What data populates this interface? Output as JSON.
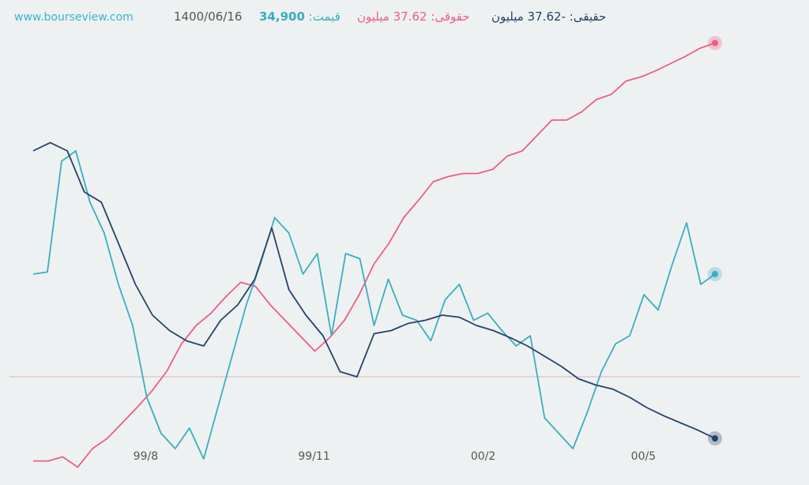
{
  "header": {
    "site": "www.bourseview.com",
    "date": "1400/06/16",
    "price_label": "قیمت: ",
    "price_value": "34,900",
    "hoqoqi_label": "حقوقی: 37.62 میلیون",
    "haqiqi_label": "حقیقی: -37.62 میلیون"
  },
  "colors": {
    "price": "#3aaec0",
    "hoqoqi": "#ee5d86",
    "haqiqi": "#24436a",
    "zero_line": "#d8b8b8",
    "background": "#eef1f1"
  },
  "chart_data": {
    "type": "line",
    "title": "",
    "xlabel": "",
    "ylabel": "",
    "x_ticks": [
      {
        "label": "99/8",
        "t": 0.165
      },
      {
        "label": "99/11",
        "t": 0.412
      },
      {
        "label": "00/2",
        "t": 0.66
      },
      {
        "label": "00/5",
        "t": 0.895
      }
    ],
    "series": [
      {
        "name": "حقوقی",
        "key": "hoqoqi",
        "values": [
          -0.82,
          -0.82,
          -0.78,
          -0.88,
          -0.7,
          -0.6,
          -0.45,
          -0.3,
          -0.14,
          0.05,
          0.32,
          0.5,
          0.62,
          0.78,
          0.92,
          0.88,
          0.7,
          0.55,
          0.4,
          0.25,
          0.38,
          0.55,
          0.8,
          1.1,
          1.3,
          1.55,
          1.72,
          1.9,
          1.95,
          1.98,
          1.98,
          2.02,
          2.15,
          2.2,
          2.35,
          2.5,
          2.5,
          2.58,
          2.7,
          2.75,
          2.88,
          2.92,
          2.98,
          3.05,
          3.12,
          3.2,
          3.25
        ]
      },
      {
        "name": "قیمت",
        "key": "price",
        "values": [
          1.0,
          1.02,
          2.1,
          2.2,
          1.7,
          1.4,
          0.9,
          0.5,
          -0.2,
          -0.55,
          -0.7,
          -0.5,
          -0.8,
          -0.3,
          0.2,
          0.7,
          1.1,
          1.55,
          1.4,
          1.0,
          1.2,
          0.4,
          1.2,
          1.15,
          0.5,
          0.95,
          0.6,
          0.55,
          0.35,
          0.75,
          0.9,
          0.55,
          0.62,
          0.45,
          0.3,
          0.4,
          -0.4,
          -0.55,
          -0.7,
          -0.35,
          0.05,
          0.32,
          0.4,
          0.8,
          0.65,
          1.1,
          1.5,
          0.9,
          1.0
        ]
      },
      {
        "name": "حقیقی",
        "key": "haqiqi",
        "values": [
          2.2,
          2.28,
          2.2,
          1.8,
          1.7,
          1.3,
          0.9,
          0.6,
          0.45,
          0.35,
          0.3,
          0.55,
          0.7,
          0.95,
          1.45,
          0.85,
          0.6,
          0.4,
          0.05,
          0.0,
          0.42,
          0.45,
          0.52,
          0.55,
          0.6,
          0.58,
          0.5,
          0.45,
          0.38,
          0.3,
          0.2,
          0.1,
          -0.02,
          -0.08,
          -0.12,
          -0.2,
          -0.3,
          -0.38,
          -0.45,
          -0.52,
          -0.6
        ]
      }
    ],
    "zero_line": true,
    "grid": false,
    "legend": "top"
  }
}
